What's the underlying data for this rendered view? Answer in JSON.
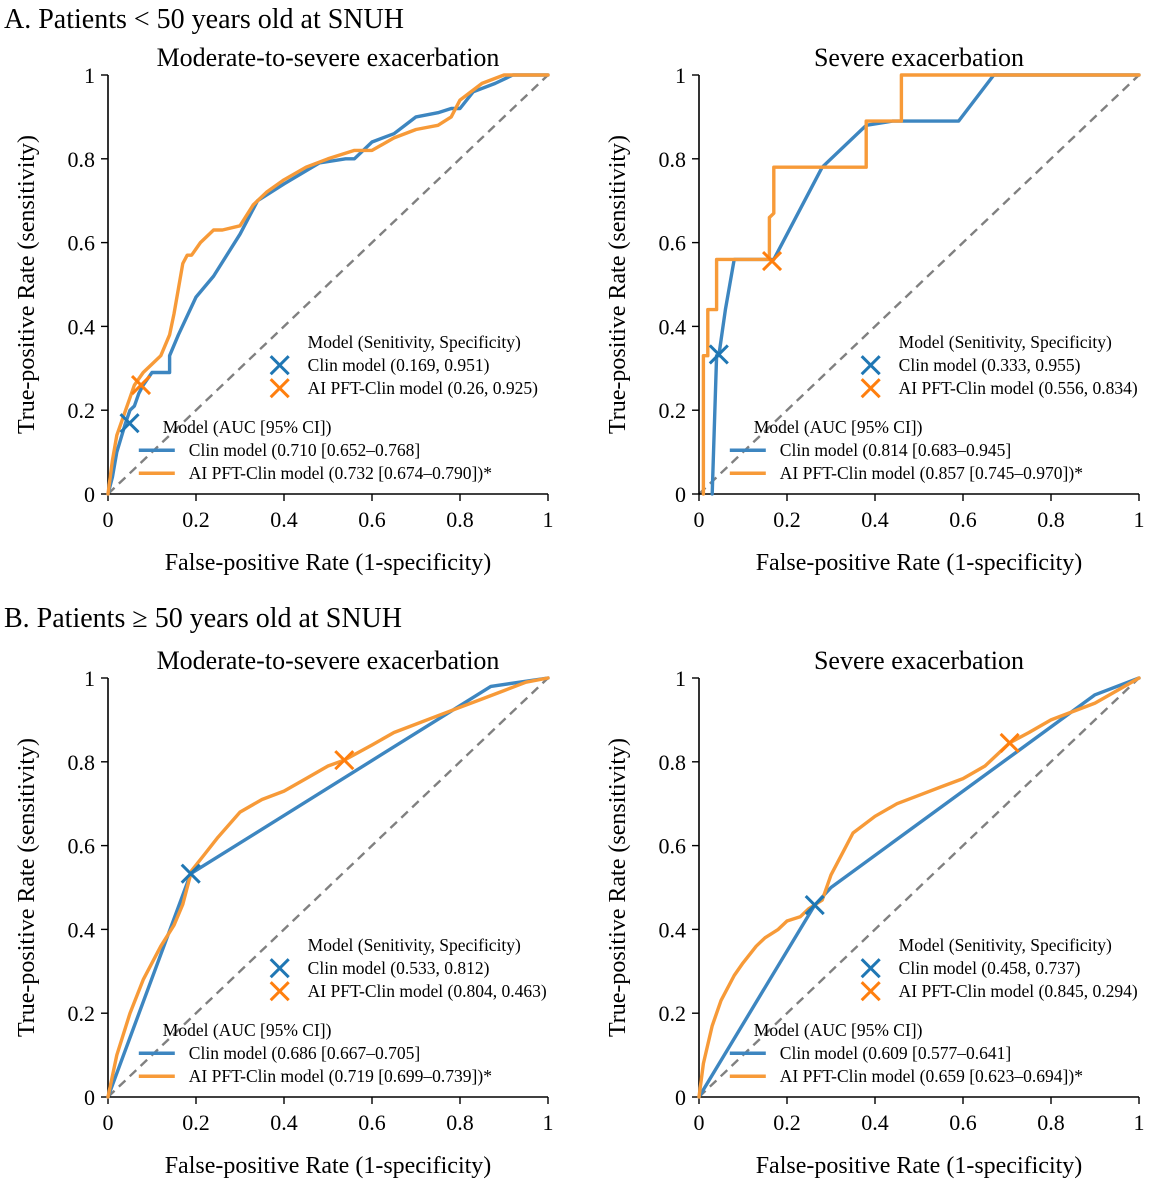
{
  "figure": {
    "section_a": "A. Patients < 50 years old at SNUH",
    "section_b": "B. Patients ≥ 50 years old at SNUH"
  },
  "colors": {
    "clin": "#3d86c0",
    "ai": "#f79a38",
    "clin_marker": "#1f77b4",
    "ai_marker": "#ff7f0e",
    "diagonal": "#808080"
  },
  "chart_data": [
    {
      "type": "line",
      "title": "Moderate-to-severe exacerbation",
      "xlabel": "False-positive Rate (1-specificity)",
      "ylabel": "True-positive Rate (sensitivity)",
      "xlim": [
        0,
        1
      ],
      "ylim": [
        0,
        1
      ],
      "xticks": [
        "0",
        "0.2",
        "0.4",
        "0.6",
        "0.8",
        "1"
      ],
      "yticks": [
        "0",
        "0.2",
        "0.4",
        "0.6",
        "0.8",
        "1"
      ],
      "series": [
        {
          "name": "Clin model",
          "legend": "Clin model (0.710 [0.652–0.768]",
          "x": [
            0,
            0.01,
            0.02,
            0.04,
            0.05,
            0.06,
            0.07,
            0.08,
            0.1,
            0.14,
            0.14,
            0.16,
            0.2,
            0.24,
            0.3,
            0.34,
            0.4,
            0.48,
            0.54,
            0.56,
            0.6,
            0.65,
            0.7,
            0.75,
            0.78,
            0.8,
            0.83,
            0.88,
            0.92,
            1
          ],
          "y": [
            0,
            0.04,
            0.1,
            0.17,
            0.2,
            0.21,
            0.24,
            0.26,
            0.29,
            0.29,
            0.33,
            0.38,
            0.47,
            0.52,
            0.62,
            0.7,
            0.74,
            0.79,
            0.8,
            0.8,
            0.84,
            0.86,
            0.9,
            0.91,
            0.92,
            0.92,
            0.96,
            0.98,
            1,
            1
          ]
        },
        {
          "name": "AI PFT-Clin model",
          "legend": "AI PFT-Clin model (0.732 [0.674–0.790])*",
          "x": [
            0,
            0.01,
            0.02,
            0.04,
            0.06,
            0.08,
            0.1,
            0.12,
            0.14,
            0.15,
            0.16,
            0.17,
            0.18,
            0.19,
            0.21,
            0.24,
            0.26,
            0.3,
            0.33,
            0.36,
            0.4,
            0.45,
            0.5,
            0.56,
            0.6,
            0.65,
            0.7,
            0.75,
            0.78,
            0.8,
            0.85,
            0.9,
            0.95,
            1
          ],
          "y": [
            0,
            0.08,
            0.14,
            0.2,
            0.26,
            0.29,
            0.31,
            0.33,
            0.38,
            0.43,
            0.49,
            0.55,
            0.57,
            0.57,
            0.6,
            0.63,
            0.63,
            0.64,
            0.69,
            0.72,
            0.75,
            0.78,
            0.8,
            0.82,
            0.82,
            0.85,
            0.87,
            0.88,
            0.9,
            0.94,
            0.98,
            1,
            1,
            1
          ]
        }
      ],
      "operating_points": [
        {
          "name": "Clin model",
          "legend": "Clin model (0.169, 0.951)",
          "sensitivity": 0.169,
          "specificity": 0.951
        },
        {
          "name": "AI PFT-Clin model",
          "legend": "AI PFT-Clin model (0.26, 0.925)",
          "sensitivity": 0.26,
          "specificity": 0.925
        }
      ],
      "legend_points_title": "Model (Senitivity, Specificity)",
      "legend_lines_title": "Model (AUC [95% CI])"
    },
    {
      "type": "line",
      "title": "Severe exacerbation",
      "xlabel": "False-positive Rate (1-specificity)",
      "ylabel": "True-positive Rate (sensitivity)",
      "xlim": [
        0,
        1
      ],
      "ylim": [
        0,
        1
      ],
      "xticks": [
        "0",
        "0.2",
        "0.4",
        "0.6",
        "0.8",
        "1"
      ],
      "yticks": [
        "0",
        "0.2",
        "0.4",
        "0.6",
        "0.8",
        "1"
      ],
      "series": [
        {
          "name": "Clin model",
          "legend": "Clin model (0.814 [0.683–0.945]",
          "x": [
            0.03,
            0.04,
            0.045,
            0.06,
            0.07,
            0.08,
            0.09,
            0.17,
            0.28,
            0.38,
            0.44,
            0.59,
            0.67,
            1
          ],
          "y": [
            0,
            0.33,
            0.33,
            0.44,
            0.5,
            0.56,
            0.56,
            0.56,
            0.78,
            0.88,
            0.89,
            0.89,
            1,
            1
          ]
        },
        {
          "name": "AI PFT-Clin model",
          "legend": "AI PFT-Clin model (0.857 [0.745–0.970])*",
          "x": [
            0.01,
            0.01,
            0.02,
            0.02,
            0.04,
            0.04,
            0.16,
            0.16,
            0.17,
            0.17,
            0.38,
            0.38,
            0.46,
            0.46,
            1
          ],
          "y": [
            0,
            0.33,
            0.33,
            0.44,
            0.44,
            0.56,
            0.56,
            0.66,
            0.67,
            0.78,
            0.78,
            0.89,
            0.89,
            1,
            1
          ]
        }
      ],
      "operating_points": [
        {
          "name": "Clin model",
          "legend": "Clin model (0.333, 0.955)",
          "sensitivity": 0.333,
          "specificity": 0.955
        },
        {
          "name": "AI PFT-Clin model",
          "legend": "AI PFT-Clin model (0.556, 0.834)",
          "sensitivity": 0.556,
          "specificity": 0.834
        }
      ],
      "legend_points_title": "Model (Senitivity, Specificity)",
      "legend_lines_title": "Model (AUC [95% CI])"
    },
    {
      "type": "line",
      "title": "Moderate-to-severe exacerbation",
      "xlabel": "False-positive Rate (1-specificity)",
      "ylabel": "True-positive Rate (sensitivity)",
      "xlim": [
        0,
        1
      ],
      "ylim": [
        0,
        1
      ],
      "xticks": [
        "0",
        "0.2",
        "0.4",
        "0.6",
        "0.8",
        "1"
      ],
      "yticks": [
        "0",
        "0.2",
        "0.4",
        "0.6",
        "0.8",
        "1"
      ],
      "series": [
        {
          "name": "Clin model",
          "legend": "Clin model (0.686 [0.667–0.705]",
          "x": [
            0,
            0.188,
            0.87,
            1
          ],
          "y": [
            0,
            0.533,
            0.98,
            1
          ]
        },
        {
          "name": "AI PFT-Clin model",
          "legend": "AI PFT-Clin model (0.719 [0.699–0.739])*",
          "x": [
            0,
            0.02,
            0.05,
            0.08,
            0.1,
            0.12,
            0.15,
            0.17,
            0.19,
            0.22,
            0.25,
            0.3,
            0.35,
            0.4,
            0.45,
            0.5,
            0.537,
            0.6,
            0.65,
            0.7,
            0.75,
            0.8,
            0.85,
            0.9,
            0.95,
            1
          ],
          "y": [
            0,
            0.1,
            0.2,
            0.28,
            0.32,
            0.36,
            0.41,
            0.46,
            0.54,
            0.58,
            0.62,
            0.68,
            0.71,
            0.73,
            0.76,
            0.79,
            0.804,
            0.84,
            0.87,
            0.89,
            0.91,
            0.93,
            0.95,
            0.97,
            0.99,
            1
          ]
        }
      ],
      "operating_points": [
        {
          "name": "Clin model",
          "legend": "Clin model (0.533, 0.812)",
          "sensitivity": 0.533,
          "specificity": 0.812
        },
        {
          "name": "AI PFT-Clin model",
          "legend": "AI PFT-Clin model (0.804, 0.463)",
          "sensitivity": 0.804,
          "specificity": 0.463
        }
      ],
      "legend_points_title": "Model (Senitivity, Specificity)",
      "legend_lines_title": "Model (AUC [95% CI])"
    },
    {
      "type": "line",
      "title": "Severe exacerbation",
      "xlabel": "False-positive Rate (1-specificity)",
      "ylabel": "True-positive Rate (sensitivity)",
      "xlim": [
        0,
        1
      ],
      "ylim": [
        0,
        1
      ],
      "xticks": [
        "0",
        "0.2",
        "0.4",
        "0.6",
        "0.8",
        "1"
      ],
      "yticks": [
        "0",
        "0.2",
        "0.4",
        "0.6",
        "0.8",
        "1"
      ],
      "series": [
        {
          "name": "Clin model",
          "legend": "Clin model (0.609 [0.577–0.641]",
          "x": [
            0,
            0.263,
            0.3,
            0.9,
            1
          ],
          "y": [
            0,
            0.458,
            0.5,
            0.96,
            1
          ]
        },
        {
          "name": "AI PFT-Clin model",
          "legend": "AI PFT-Clin model (0.659 [0.623–0.694])*",
          "x": [
            0,
            0.01,
            0.03,
            0.05,
            0.08,
            0.1,
            0.13,
            0.15,
            0.18,
            0.2,
            0.23,
            0.25,
            0.28,
            0.3,
            0.33,
            0.35,
            0.4,
            0.45,
            0.5,
            0.55,
            0.6,
            0.65,
            0.706,
            0.75,
            0.8,
            0.85,
            0.9,
            0.95,
            1
          ],
          "y": [
            0,
            0.08,
            0.17,
            0.23,
            0.29,
            0.32,
            0.36,
            0.38,
            0.4,
            0.42,
            0.43,
            0.45,
            0.47,
            0.53,
            0.59,
            0.63,
            0.67,
            0.7,
            0.72,
            0.74,
            0.76,
            0.79,
            0.845,
            0.87,
            0.9,
            0.92,
            0.94,
            0.97,
            1
          ]
        }
      ],
      "operating_points": [
        {
          "name": "Clin model",
          "legend": "Clin model (0.458, 0.737)",
          "sensitivity": 0.458,
          "specificity": 0.737
        },
        {
          "name": "AI PFT-Clin model",
          "legend": "AI PFT-Clin model (0.845, 0.294)",
          "sensitivity": 0.845,
          "specificity": 0.294
        }
      ],
      "legend_points_title": "Model (Senitivity, Specificity)",
      "legend_lines_title": "Model (AUC [95% CI])"
    }
  ]
}
